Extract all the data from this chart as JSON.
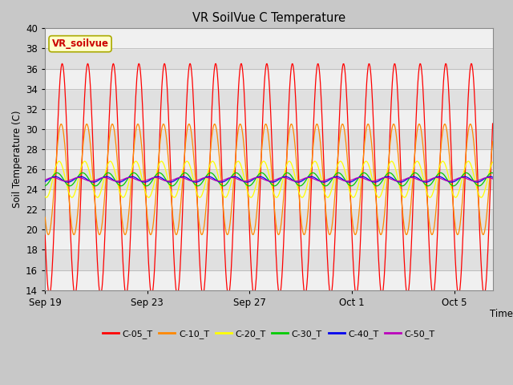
{
  "title": "VR SoilVue C Temperature",
  "xlabel": "Time",
  "ylabel": "Soil Temperature (C)",
  "ylim": [
    14,
    40
  ],
  "yticks": [
    14,
    16,
    18,
    20,
    22,
    24,
    26,
    28,
    30,
    32,
    34,
    36,
    38,
    40
  ],
  "fig_bg_color": "#c8c8c8",
  "plot_bg_light": "#f0f0f0",
  "plot_bg_dark": "#e0e0e0",
  "grid_color": "#b0b0b0",
  "series": [
    {
      "name": "C-05_T",
      "color": "#ff0000",
      "amp": 11.5,
      "phase": 0.0,
      "base": 25.0
    },
    {
      "name": "C-10_T",
      "color": "#ff8800",
      "amp": 5.5,
      "phase": 0.06,
      "base": 25.0
    },
    {
      "name": "C-20_T",
      "color": "#ffff00",
      "amp": 1.8,
      "phase": 0.18,
      "base": 25.0
    },
    {
      "name": "C-30_T",
      "color": "#00cc00",
      "amp": 0.65,
      "phase": 0.32,
      "base": 25.0
    },
    {
      "name": "C-40_T",
      "color": "#0000ee",
      "amp": 0.3,
      "phase": 0.46,
      "base": 25.0
    },
    {
      "name": "C-50_T",
      "color": "#bb00bb",
      "amp": 0.2,
      "phase": 0.58,
      "base": 25.0
    }
  ],
  "annotation_text": "VR_soilvue",
  "annotation_color": "#cc0000",
  "annotation_bg": "#ffffcc",
  "annotation_border": "#aaaa00",
  "x_tick_labels": [
    "Sep 19",
    "Sep 23",
    "Sep 27",
    "Oct 1",
    "Oct 5"
  ],
  "x_tick_positions": [
    0,
    4,
    8,
    12,
    16
  ],
  "num_days": 17.5
}
